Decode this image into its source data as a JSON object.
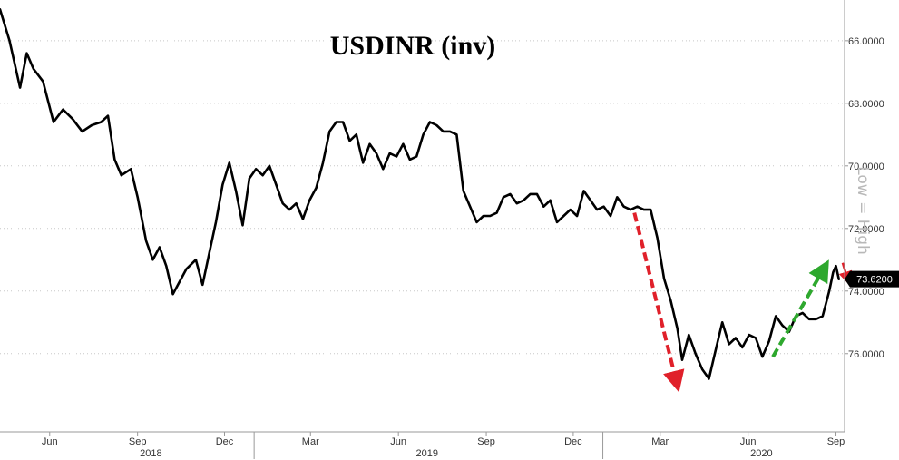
{
  "chart_data": {
    "type": "line",
    "title": "USDINR (inv)",
    "y_axis": {
      "position": "right",
      "inverted": true,
      "range": [
        64.7,
        78.5
      ],
      "ticks": [
        {
          "value": 66,
          "label": "66.0000"
        },
        {
          "value": 68,
          "label": "68.0000"
        },
        {
          "value": 70,
          "label": "70.0000"
        },
        {
          "value": 72,
          "label": "72.0000"
        },
        {
          "value": 74,
          "label": "74.0000"
        },
        {
          "value": 76,
          "label": "76.0000"
        }
      ]
    },
    "x_axis": {
      "range": [
        "2018-04-10",
        "2020-09-10"
      ],
      "month_ticks": [
        {
          "date": "2018-06-01",
          "label": "Jun"
        },
        {
          "date": "2018-09-01",
          "label": "Sep"
        },
        {
          "date": "2018-12-01",
          "label": "Dec"
        },
        {
          "date": "2019-03-01",
          "label": "Mar"
        },
        {
          "date": "2019-06-01",
          "label": "Jun"
        },
        {
          "date": "2019-09-01",
          "label": "Sep"
        },
        {
          "date": "2019-12-01",
          "label": "Dec"
        },
        {
          "date": "2020-03-01",
          "label": "Mar"
        },
        {
          "date": "2020-06-01",
          "label": "Jun"
        },
        {
          "date": "2020-09-01",
          "label": "Sep"
        }
      ],
      "year_labels": [
        {
          "date": "2018-09-15",
          "label": "2018"
        },
        {
          "date": "2019-07-01",
          "label": "2019"
        },
        {
          "date": "2020-06-15",
          "label": "2020"
        }
      ],
      "year_dividers": [
        "2019-01-01",
        "2020-01-01"
      ]
    },
    "series": [
      {
        "color": "#000000",
        "points": [
          [
            "2018-04-10",
            65.0
          ],
          [
            "2018-04-20",
            66.0
          ],
          [
            "2018-05-01",
            67.5
          ],
          [
            "2018-05-08",
            66.4
          ],
          [
            "2018-05-15",
            66.9
          ],
          [
            "2018-05-25",
            67.3
          ],
          [
            "2018-06-05",
            68.6
          ],
          [
            "2018-06-15",
            68.2
          ],
          [
            "2018-06-25",
            68.5
          ],
          [
            "2018-07-05",
            68.9
          ],
          [
            "2018-07-15",
            68.7
          ],
          [
            "2018-07-25",
            68.6
          ],
          [
            "2018-08-01",
            68.4
          ],
          [
            "2018-08-08",
            69.8
          ],
          [
            "2018-08-15",
            70.3
          ],
          [
            "2018-08-25",
            70.1
          ],
          [
            "2018-09-01",
            71.0
          ],
          [
            "2018-09-10",
            72.4
          ],
          [
            "2018-09-17",
            73.0
          ],
          [
            "2018-09-24",
            72.6
          ],
          [
            "2018-10-01",
            73.2
          ],
          [
            "2018-10-08",
            74.1
          ],
          [
            "2018-10-15",
            73.7
          ],
          [
            "2018-10-22",
            73.3
          ],
          [
            "2018-11-01",
            73.0
          ],
          [
            "2018-11-08",
            73.8
          ],
          [
            "2018-11-15",
            72.8
          ],
          [
            "2018-11-22",
            71.8
          ],
          [
            "2018-11-29",
            70.6
          ],
          [
            "2018-12-06",
            69.9
          ],
          [
            "2018-12-13",
            70.8
          ],
          [
            "2018-12-20",
            71.9
          ],
          [
            "2018-12-27",
            70.4
          ],
          [
            "2019-01-03",
            70.1
          ],
          [
            "2019-01-10",
            70.3
          ],
          [
            "2019-01-17",
            70.0
          ],
          [
            "2019-01-24",
            70.6
          ],
          [
            "2019-01-31",
            71.2
          ],
          [
            "2019-02-07",
            71.4
          ],
          [
            "2019-02-14",
            71.2
          ],
          [
            "2019-02-21",
            71.7
          ],
          [
            "2019-02-28",
            71.1
          ],
          [
            "2019-03-07",
            70.7
          ],
          [
            "2019-03-14",
            69.9
          ],
          [
            "2019-03-21",
            68.9
          ],
          [
            "2019-03-28",
            68.6
          ],
          [
            "2019-04-04",
            68.6
          ],
          [
            "2019-04-11",
            69.2
          ],
          [
            "2019-04-18",
            69.0
          ],
          [
            "2019-04-25",
            69.9
          ],
          [
            "2019-05-02",
            69.3
          ],
          [
            "2019-05-09",
            69.6
          ],
          [
            "2019-05-16",
            70.1
          ],
          [
            "2019-05-23",
            69.6
          ],
          [
            "2019-05-30",
            69.7
          ],
          [
            "2019-06-06",
            69.3
          ],
          [
            "2019-06-13",
            69.8
          ],
          [
            "2019-06-20",
            69.7
          ],
          [
            "2019-06-27",
            69.0
          ],
          [
            "2019-07-04",
            68.6
          ],
          [
            "2019-07-11",
            68.7
          ],
          [
            "2019-07-18",
            68.9
          ],
          [
            "2019-07-25",
            68.9
          ],
          [
            "2019-08-01",
            69.0
          ],
          [
            "2019-08-08",
            70.8
          ],
          [
            "2019-08-15",
            71.3
          ],
          [
            "2019-08-22",
            71.8
          ],
          [
            "2019-08-29",
            71.6
          ],
          [
            "2019-09-05",
            71.6
          ],
          [
            "2019-09-12",
            71.5
          ],
          [
            "2019-09-19",
            71.0
          ],
          [
            "2019-09-26",
            70.9
          ],
          [
            "2019-10-03",
            71.2
          ],
          [
            "2019-10-10",
            71.1
          ],
          [
            "2019-10-17",
            70.9
          ],
          [
            "2019-10-24",
            70.9
          ],
          [
            "2019-10-31",
            71.3
          ],
          [
            "2019-11-07",
            71.1
          ],
          [
            "2019-11-14",
            71.8
          ],
          [
            "2019-11-21",
            71.6
          ],
          [
            "2019-11-28",
            71.4
          ],
          [
            "2019-12-05",
            71.6
          ],
          [
            "2019-12-12",
            70.8
          ],
          [
            "2019-12-19",
            71.1
          ],
          [
            "2019-12-26",
            71.4
          ],
          [
            "2020-01-02",
            71.3
          ],
          [
            "2020-01-09",
            71.6
          ],
          [
            "2020-01-16",
            71.0
          ],
          [
            "2020-01-23",
            71.3
          ],
          [
            "2020-01-30",
            71.4
          ],
          [
            "2020-02-06",
            71.3
          ],
          [
            "2020-02-13",
            71.4
          ],
          [
            "2020-02-20",
            71.4
          ],
          [
            "2020-02-27",
            72.3
          ],
          [
            "2020-03-05",
            73.6
          ],
          [
            "2020-03-12",
            74.3
          ],
          [
            "2020-03-19",
            75.2
          ],
          [
            "2020-03-24",
            76.2
          ],
          [
            "2020-03-31",
            75.4
          ],
          [
            "2020-04-07",
            76.0
          ],
          [
            "2020-04-14",
            76.5
          ],
          [
            "2020-04-21",
            76.8
          ],
          [
            "2020-04-28",
            75.9
          ],
          [
            "2020-05-05",
            75.0
          ],
          [
            "2020-05-12",
            75.7
          ],
          [
            "2020-05-19",
            75.5
          ],
          [
            "2020-05-26",
            75.8
          ],
          [
            "2020-06-02",
            75.4
          ],
          [
            "2020-06-09",
            75.5
          ],
          [
            "2020-06-16",
            76.1
          ],
          [
            "2020-06-23",
            75.6
          ],
          [
            "2020-06-30",
            74.8
          ],
          [
            "2020-07-07",
            75.1
          ],
          [
            "2020-07-14",
            75.3
          ],
          [
            "2020-07-21",
            74.8
          ],
          [
            "2020-07-28",
            74.7
          ],
          [
            "2020-08-04",
            74.9
          ],
          [
            "2020-08-11",
            74.9
          ],
          [
            "2020-08-18",
            74.8
          ],
          [
            "2020-08-25",
            74.0
          ],
          [
            "2020-08-29",
            73.4
          ],
          [
            "2020-09-01",
            73.2
          ],
          [
            "2020-09-04",
            73.62
          ]
        ]
      }
    ],
    "last_value": {
      "label": "73.6200",
      "value": 73.62,
      "badge_color": "#000000"
    },
    "annotations": [
      {
        "type": "arrow",
        "style": "dashed",
        "color": "#e0202a",
        "from": [
          "2020-02-03",
          71.5
        ],
        "to": [
          "2020-03-18",
          76.9
        ]
      },
      {
        "type": "arrow",
        "style": "dashed",
        "color": "#2ea82e",
        "from": [
          "2020-06-27",
          76.1
        ],
        "to": [
          "2020-08-19",
          73.3
        ]
      },
      {
        "type": "arrow",
        "style": "solid",
        "color": "#e0202a",
        "from": [
          "2020-09-08",
          73.1
        ],
        "to": [
          "2020-09-13",
          73.6
        ]
      }
    ],
    "grid": {
      "horizontal": true,
      "vertical": false,
      "style": "dotted",
      "color": "#c8c8c8"
    },
    "watermark": "Low = High",
    "colors": {
      "line": "#000000",
      "grid": "#c8c8c8",
      "axis": "#999999",
      "text": "#333333"
    }
  }
}
